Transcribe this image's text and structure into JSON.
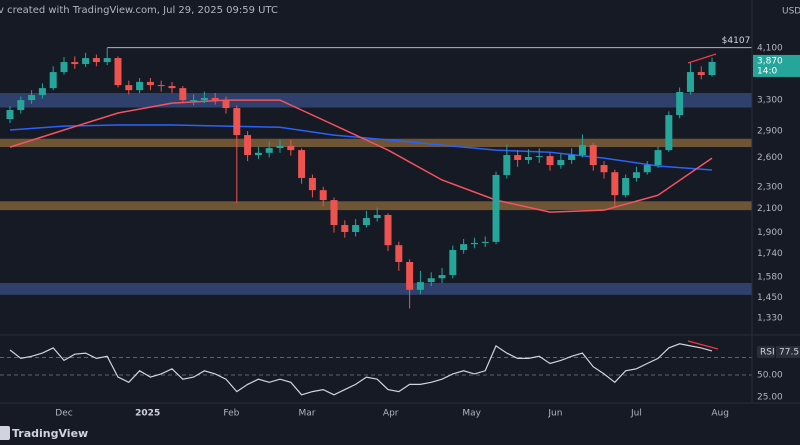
{
  "header": "v created with TradingView.com, Jul 29, 2025 09:59 UTC",
  "watermark": "TradingView",
  "chart_data": [
    {
      "type": "candlestick",
      "currency": "USD",
      "log_scale": true,
      "grid": false,
      "up_color": "#26a69a",
      "down_color": "#ef5350",
      "x": [
        -20,
        -16,
        -12,
        -8,
        -4,
        0,
        4,
        8,
        12,
        16,
        20,
        24,
        28,
        32,
        36,
        40,
        44,
        48,
        52,
        56,
        60,
        64,
        68,
        72,
        76,
        80,
        84,
        88,
        92,
        96,
        100,
        104,
        108,
        112,
        116,
        120,
        124,
        128,
        132,
        136,
        140,
        144,
        148,
        152,
        156,
        160,
        164,
        168,
        172,
        176,
        180,
        184,
        188,
        192,
        196,
        200,
        204,
        208,
        212,
        216,
        220,
        224,
        228,
        232,
        236,
        240
      ],
      "open": [
        3050,
        3167,
        3301,
        3371,
        3470,
        3710,
        3868,
        3836,
        3933,
        3868,
        3933,
        3514,
        3441,
        3561,
        3514,
        3500,
        3470,
        3301,
        3301,
        3330,
        3301,
        3193,
        2853,
        2625,
        2650,
        2703,
        2727,
        2680,
        2386,
        2268,
        2176,
        1961,
        1905,
        1961,
        2019,
        2045,
        1803,
        1681,
        1497,
        1546,
        1571,
        1592,
        1767,
        1811,
        1820,
        1828,
        2416,
        2625,
        2572,
        2604,
        2614,
        2518,
        2572,
        2625,
        2736,
        2518,
        2444,
        2221,
        2386,
        2444,
        2518,
        2680,
        3101,
        3415,
        3710,
        3665
      ],
      "high": [
        3220,
        3350,
        3440,
        3540,
        3800,
        3950,
        3960,
        4020,
        3990,
        4107,
        3960,
        3580,
        3620,
        3620,
        3580,
        3560,
        3500,
        3380,
        3420,
        3400,
        3350,
        3230,
        2900,
        2720,
        2780,
        2800,
        2800,
        2700,
        2420,
        2300,
        2200,
        2000,
        2010,
        2080,
        2110,
        2060,
        1830,
        1700,
        1620,
        1610,
        1640,
        1800,
        1850,
        1860,
        1870,
        2450,
        2740,
        2680,
        2690,
        2700,
        2650,
        2640,
        2700,
        2860,
        2760,
        2560,
        2470,
        2420,
        2500,
        2560,
        2720,
        3150,
        3480,
        3860,
        3800,
        3940
      ],
      "low": [
        3000,
        3120,
        3250,
        3320,
        3440,
        3670,
        3760,
        3790,
        3800,
        3820,
        3480,
        3380,
        3400,
        3440,
        3420,
        3400,
        3260,
        3230,
        3260,
        3240,
        3120,
        2150,
        2560,
        2580,
        2600,
        2650,
        2620,
        2330,
        2200,
        2120,
        1900,
        1860,
        1870,
        1940,
        1990,
        1760,
        1620,
        1385,
        1470,
        1520,
        1540,
        1570,
        1740,
        1780,
        1790,
        1810,
        2380,
        2500,
        2530,
        2540,
        2460,
        2480,
        2530,
        2600,
        2460,
        2380,
        2120,
        2200,
        2350,
        2420,
        2490,
        2660,
        3060,
        3380,
        3600,
        3640
      ],
      "close": [
        3167,
        3301,
        3371,
        3470,
        3710,
        3868,
        3836,
        3933,
        3868,
        3933,
        3514,
        3441,
        3561,
        3514,
        3500,
        3470,
        3301,
        3301,
        3330,
        3301,
        3193,
        2853,
        2625,
        2650,
        2703,
        2727,
        2680,
        2386,
        2268,
        2176,
        1961,
        1905,
        1961,
        2019,
        2045,
        1803,
        1681,
        1497,
        1546,
        1571,
        1592,
        1767,
        1811,
        1820,
        1828,
        2416,
        2625,
        2572,
        2604,
        2614,
        2518,
        2572,
        2625,
        2736,
        2518,
        2444,
        2221,
        2386,
        2444,
        2518,
        2680,
        3101,
        3415,
        3710,
        3665,
        3870
      ],
      "last_price": {
        "value": 3870,
        "label": "3,870"
      },
      "countdown": "14:0",
      "lines": [
        {
          "color": "#2962ff",
          "x": [
            -20,
            0,
            20,
            40,
            60,
            80,
            100,
            120,
            140,
            160,
            180,
            200,
            220,
            240
          ],
          "values": [
            2914,
            2962,
            2975,
            2975,
            2962,
            2947,
            2853,
            2796,
            2736,
            2680,
            2655,
            2592,
            2508,
            2467
          ]
        },
        {
          "color": "#f7525f",
          "x": [
            -20,
            0,
            20,
            40,
            60,
            80,
            100,
            120,
            140,
            160,
            180,
            200,
            220,
            240
          ],
          "values": [
            2714,
            2914,
            3128,
            3260,
            3301,
            3301,
            2975,
            2680,
            2366,
            2176,
            2070,
            2087,
            2221,
            2592
          ]
        }
      ],
      "zones": [
        {
          "low": 3200,
          "high": 3400,
          "color": "#3a4d86"
        },
        {
          "low": 2714,
          "high": 2810,
          "color": "#8c6a3c"
        },
        {
          "low": 2087,
          "high": 2165,
          "color": "#8c6a3c"
        },
        {
          "low": 1466,
          "high": 1540,
          "color": "#3a4d86"
        }
      ],
      "resistance": {
        "value": 4107,
        "label": "$4107"
      },
      "ylim": [
        1240,
        5010
      ],
      "yticks": [
        {
          "value": 4100,
          "label": "4,100"
        },
        {
          "value": 3300,
          "label": "3,300"
        },
        {
          "value": 2900,
          "label": "2,900"
        },
        {
          "value": 2600,
          "label": "2,600"
        },
        {
          "value": 2300,
          "label": "2,300"
        },
        {
          "value": 2100,
          "label": "2,100"
        },
        {
          "value": 1900,
          "label": "1,900"
        },
        {
          "value": 1740,
          "label": "1,740"
        },
        {
          "value": 1580,
          "label": "1,580"
        },
        {
          "value": 1450,
          "label": "1,450"
        },
        {
          "value": 1330,
          "label": "1,330"
        }
      ],
      "xlim": [
        -23.7,
        254.8
      ],
      "xticks": [
        {
          "value": 0,
          "label": "Dec"
        },
        {
          "value": 31,
          "label": "2025"
        },
        {
          "value": 62,
          "label": "Feb"
        },
        {
          "value": 90,
          "label": "Mar"
        },
        {
          "value": 121,
          "label": "Apr"
        },
        {
          "value": 151,
          "label": "May"
        },
        {
          "value": 182,
          "label": "Jun"
        },
        {
          "value": 212,
          "label": "Jul"
        },
        {
          "value": 243,
          "label": "Aug"
        }
      ]
    },
    {
      "type": "line",
      "title": "RSI",
      "color": "#d1d4dc",
      "x": [
        -20,
        -16,
        -12,
        -8,
        -4,
        0,
        4,
        8,
        12,
        16,
        20,
        24,
        28,
        32,
        36,
        40,
        44,
        48,
        52,
        56,
        60,
        64,
        68,
        72,
        76,
        80,
        84,
        88,
        92,
        96,
        100,
        104,
        108,
        112,
        116,
        120,
        124,
        128,
        132,
        136,
        140,
        144,
        148,
        152,
        156,
        160,
        164,
        168,
        172,
        176,
        180,
        184,
        188,
        192,
        196,
        200,
        204,
        208,
        212,
        216,
        220,
        224,
        228,
        232,
        236,
        240
      ],
      "values": [
        78.6,
        69,
        71.4,
        75,
        81,
        66.7,
        73.8,
        75,
        69,
        71.4,
        47.6,
        41.7,
        54.8,
        47.6,
        51.2,
        57.1,
        45.2,
        47.6,
        54.8,
        51.2,
        45.2,
        31,
        39.3,
        45.2,
        41.7,
        45.2,
        41.7,
        27.4,
        31,
        33.3,
        27.4,
        33.3,
        39.3,
        47.6,
        45.2,
        33.3,
        31,
        39.3,
        39.3,
        41.7,
        45.2,
        51.2,
        54.8,
        51.2,
        54.8,
        83.3,
        75,
        69,
        69,
        71.4,
        63.1,
        66.7,
        71.4,
        75,
        59.5,
        51.2,
        41.7,
        54.8,
        57.1,
        63.1,
        69,
        81,
        85.7,
        83.3,
        81,
        77.5
      ],
      "levels": [
        70,
        50
      ],
      "ylim": [
        18,
        90
      ],
      "yticks": [
        {
          "value": 50,
          "label": "50.00"
        },
        {
          "value": 25,
          "label": "25.00"
        }
      ]
    }
  ]
}
